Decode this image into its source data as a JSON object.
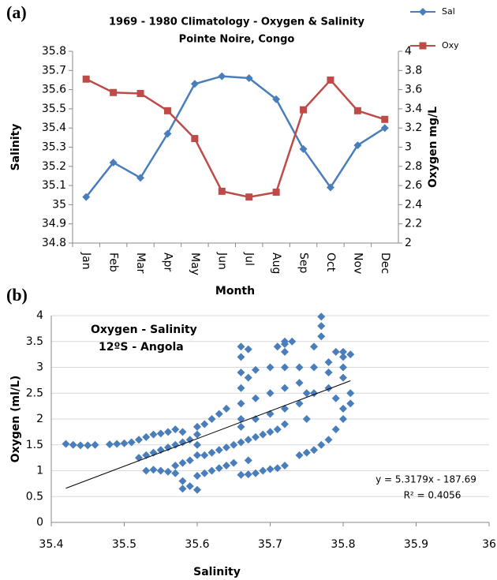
{
  "chart_data": [
    {
      "type": "line",
      "panel_label": "(a)",
      "title": "1969 - 1980 Climatology - Oxygen & Salinity",
      "subtitle": "Pointe Noire, Congo",
      "x_label": "Month",
      "y_label": "Salinity",
      "y2_label": "Oxygen mg/L",
      "legend": "right",
      "categories": [
        "Jan",
        "Feb",
        "Mar",
        "Apr",
        "May",
        "Jun",
        "Jul",
        "Aug",
        "Sep",
        "Oct",
        "Nov",
        "Dec"
      ],
      "series": [
        {
          "name": "Sal",
          "color": "#4a7ebb",
          "marker": "diamond",
          "values": [
            35.04,
            35.22,
            35.14,
            35.37,
            35.63,
            35.67,
            35.66,
            35.55,
            35.29,
            35.09,
            35.31,
            35.4
          ]
        },
        {
          "name": "Oxy",
          "color": "#be4b48",
          "marker": "square",
          "axis": "y2",
          "values": [
            3.71,
            3.57,
            3.56,
            3.38,
            3.09,
            2.54,
            2.48,
            2.53,
            3.39,
            3.7,
            3.38,
            3.29
          ]
        }
      ],
      "ylim": [
        34.8,
        35.8
      ],
      "yticks": [
        34.8,
        34.9,
        35,
        35.1,
        35.2,
        35.3,
        35.4,
        35.5,
        35.6,
        35.7,
        35.8
      ],
      "y2lim": [
        2,
        4
      ],
      "y2ticks": [
        2,
        2.2,
        2.4,
        2.6,
        2.8,
        3,
        3.2,
        3.4,
        3.6,
        3.8,
        4
      ],
      "grid": false
    },
    {
      "type": "scatter",
      "panel_label": "(b)",
      "x_label": "Salinity",
      "y_label": "Oxygen (ml/L)",
      "color": "#4a7ebb",
      "grid": true,
      "annotations": [
        "Oxygen - Salinity",
        "12ºS - Angola",
        "y = 5.3179x - 187.69",
        "R² = 0.4056"
      ],
      "xlim": [
        35.4,
        36
      ],
      "xticks": [
        35.4,
        35.5,
        35.6,
        35.7,
        35.8,
        35.9,
        36
      ],
      "ylim": [
        0,
        4
      ],
      "yticks": [
        0,
        0.5,
        1,
        1.5,
        2,
        2.5,
        3,
        3.5,
        4
      ],
      "trendline": {
        "x": [
          35.42,
          35.81
        ],
        "values": [
          0.66,
          2.74
        ]
      },
      "x": [
        35.42,
        35.43,
        35.44,
        35.45,
        35.46,
        35.48,
        35.49,
        35.5,
        35.51,
        35.52,
        35.53,
        35.54,
        35.55,
        35.56,
        35.57,
        35.58,
        35.52,
        35.53,
        35.54,
        35.55,
        35.56,
        35.57,
        35.58,
        35.59,
        35.53,
        35.54,
        35.55,
        35.56,
        35.57,
        35.58,
        35.59,
        35.6,
        35.58,
        35.57,
        35.58,
        35.59,
        35.6,
        35.6,
        35.6,
        35.6,
        35.61,
        35.62,
        35.63,
        35.64,
        35.6,
        35.61,
        35.62,
        35.63,
        35.64,
        35.65,
        35.61,
        35.62,
        35.63,
        35.64,
        35.65,
        35.66,
        35.66,
        35.66,
        35.66,
        35.66,
        35.66,
        35.66,
        35.67,
        35.67,
        35.67,
        35.66,
        35.67,
        35.68,
        35.69,
        35.7,
        35.71,
        35.72,
        35.67,
        35.68,
        35.69,
        35.7,
        35.71,
        35.72,
        35.66,
        35.68,
        35.7,
        35.72,
        35.74,
        35.68,
        35.7,
        35.72,
        35.74,
        35.68,
        35.7,
        35.72,
        35.74,
        35.72,
        35.72,
        35.72,
        35.71,
        35.73,
        35.74,
        35.75,
        35.76,
        35.77,
        35.78,
        35.79,
        35.75,
        35.76,
        35.76,
        35.76,
        35.77,
        35.77,
        35.77,
        35.75,
        35.78,
        35.78,
        35.78,
        35.79,
        35.8,
        35.8,
        35.8,
        35.8,
        35.81,
        35.81,
        35.81,
        35.8,
        35.79,
        35.8
      ],
      "values": [
        1.52,
        1.5,
        1.49,
        1.49,
        1.5,
        1.51,
        1.52,
        1.53,
        1.55,
        1.6,
        1.65,
        1.7,
        1.72,
        1.75,
        1.8,
        1.75,
        1.25,
        1.3,
        1.35,
        1.4,
        1.45,
        1.5,
        1.55,
        1.6,
        1.0,
        1.02,
        1.0,
        0.98,
        0.95,
        0.8,
        0.7,
        0.63,
        0.65,
        1.1,
        1.15,
        1.2,
        1.3,
        1.5,
        1.7,
        1.85,
        1.9,
        2.0,
        2.1,
        2.2,
        0.9,
        0.95,
        1.0,
        1.05,
        1.1,
        1.15,
        1.3,
        1.35,
        1.4,
        1.45,
        1.5,
        1.55,
        2.0,
        2.3,
        2.6,
        2.9,
        3.2,
        3.4,
        3.35,
        2.8,
        1.2,
        0.92,
        0.93,
        0.95,
        1.0,
        1.03,
        1.05,
        1.1,
        1.6,
        1.65,
        1.7,
        1.75,
        1.8,
        1.9,
        1.85,
        2.0,
        2.1,
        2.2,
        2.3,
        2.4,
        2.5,
        2.6,
        2.7,
        2.95,
        3.0,
        3.0,
        3.0,
        3.3,
        3.45,
        3.5,
        3.4,
        3.5,
        1.3,
        1.35,
        1.4,
        1.5,
        1.6,
        1.8,
        2.0,
        2.5,
        3.0,
        3.4,
        3.6,
        3.98,
        3.8,
        2.5,
        2.6,
        2.9,
        3.1,
        2.4,
        2.2,
        2.8,
        3.0,
        3.3,
        3.25,
        2.5,
        2.3,
        2.0,
        3.3,
        3.2
      ]
    }
  ]
}
